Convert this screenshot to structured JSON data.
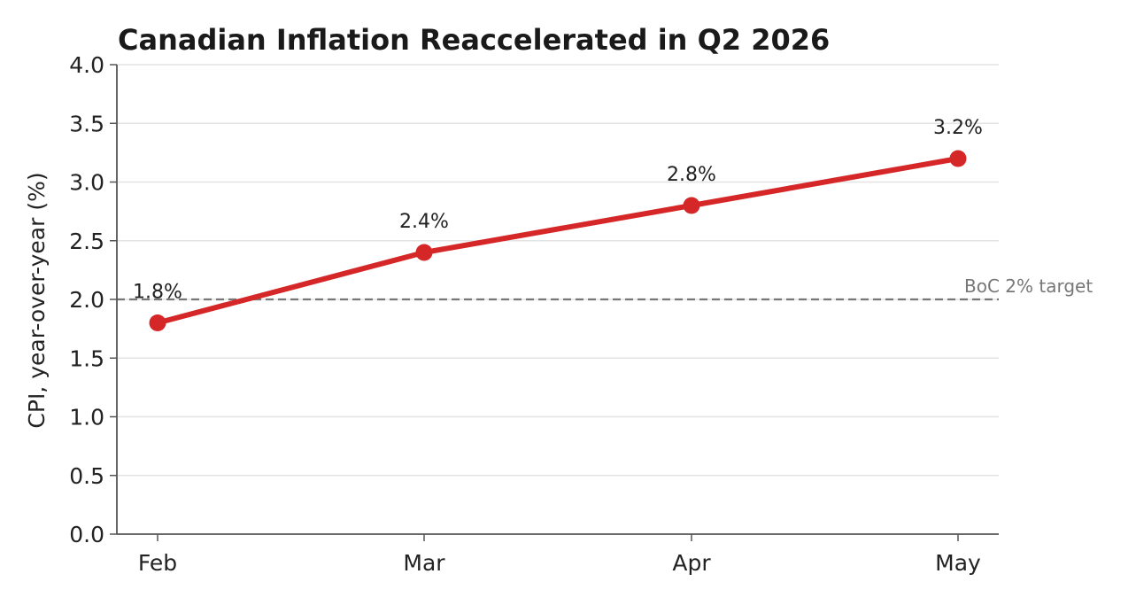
{
  "chart_data": {
    "type": "line",
    "title": "Canadian Inflation Reaccelerated in Q2 2026",
    "xlabel": "",
    "ylabel": "CPI, year-over-year (%)",
    "categories": [
      "Feb",
      "Mar",
      "Apr",
      "May"
    ],
    "series": [
      {
        "values": [
          1.8,
          2.4,
          2.8,
          3.2
        ],
        "labels": [
          "1.8%",
          "2.4%",
          "2.8%",
          "3.2%"
        ],
        "color": "#d62728"
      }
    ],
    "ylim": [
      0,
      4.0
    ],
    "yticks": [
      "0.0",
      "0.5",
      "1.0",
      "1.5",
      "2.0",
      "2.5",
      "3.0",
      "3.5",
      "4.0"
    ],
    "reference_line": {
      "value": 2.0,
      "label": "BoC 2% target",
      "color": "#777777",
      "style": "dashed"
    },
    "grid": "horizontal",
    "legend": "none"
  }
}
